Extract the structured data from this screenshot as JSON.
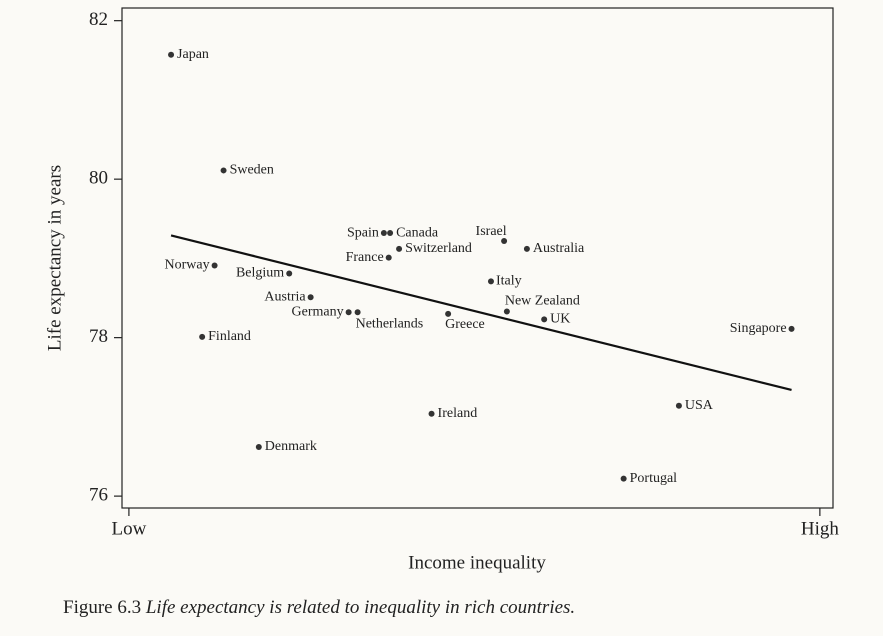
{
  "chart_data": {
    "type": "scatter",
    "xlabel": "Income inequality",
    "ylabel": "Life expectancy in years",
    "caption_label": "Figure 6.3",
    "caption_text": "Life expectancy is related to inequality in rich countries.",
    "xlim": [
      -0.01,
      1.019
    ],
    "ylim": [
      75.85,
      82.16
    ],
    "xticks": [
      {
        "value": 0,
        "label": "Low"
      },
      {
        "value": 1,
        "label": "High"
      }
    ],
    "yticks": [
      76,
      78,
      80,
      82
    ],
    "color": "#333333",
    "labels": [
      "Japan",
      "Sweden",
      "Spain",
      "Canada",
      "Switzerland",
      "France",
      "Israel",
      "Australia",
      "Norway",
      "Belgium",
      "Italy",
      "Austria",
      "Germany",
      "Netherlands",
      "Greece",
      "New Zealand",
      "UK",
      "Singapore",
      "Finland",
      "Ireland",
      "USA",
      "Denmark",
      "Portugal"
    ],
    "x": [
      0.061,
      0.137,
      0.369,
      0.378,
      0.391,
      0.376,
      0.543,
      0.576,
      0.124,
      0.232,
      0.524,
      0.263,
      0.318,
      0.331,
      0.462,
      0.547,
      0.601,
      0.959,
      0.106,
      0.438,
      0.796,
      0.188,
      0.716
    ],
    "values": [
      81.57,
      80.11,
      79.32,
      79.32,
      79.12,
      79.01,
      79.22,
      79.12,
      78.91,
      78.81,
      78.71,
      78.51,
      78.32,
      78.32,
      78.3,
      78.33,
      78.23,
      78.11,
      78.01,
      77.04,
      77.14,
      76.62,
      76.22
    ],
    "trend_line": {
      "x": [
        0.061,
        0.959
      ],
      "y": [
        79.29,
        77.34
      ]
    }
  }
}
